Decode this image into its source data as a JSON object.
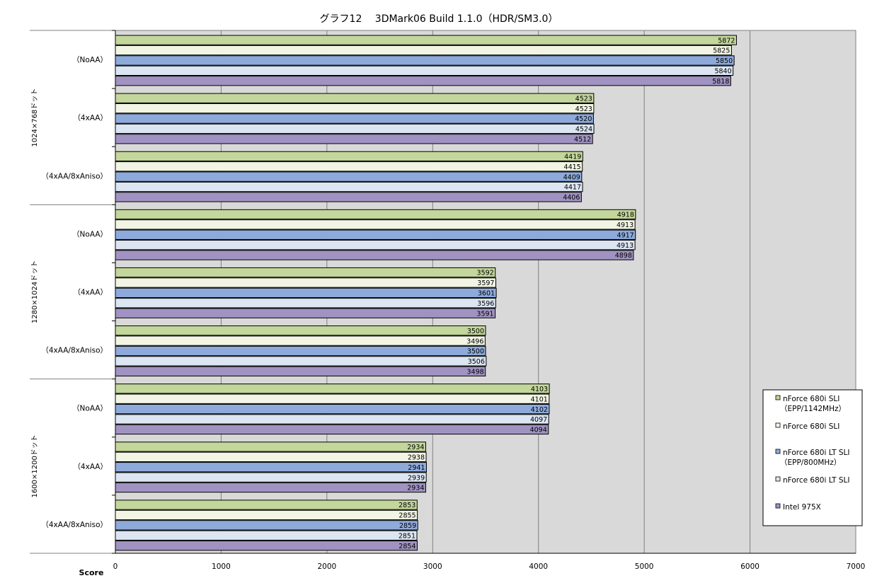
{
  "chart_data": {
    "type": "bar",
    "orientation": "horizontal",
    "title": "グラフ12　 3DMark06 Build 1.1.0（HDR/SM3.0）",
    "xlabel": "Score",
    "xlim": [
      0,
      7000
    ],
    "xticks": [
      0,
      1000,
      2000,
      3000,
      4000,
      5000,
      6000,
      7000
    ],
    "grid": true,
    "legend_position": "right",
    "groups": [
      {
        "label": "1024×768ドット",
        "categories": [
          "（NoAA）",
          "（4xAA）",
          "（4xAA/8xAniso）"
        ]
      },
      {
        "label": "1280×1024ドット",
        "categories": [
          "（NoAA）",
          "（4xAA）",
          "（4xAA/8xAniso）"
        ]
      },
      {
        "label": "1600×1200ドット",
        "categories": [
          "（NoAA）",
          "（4xAA）",
          "（4xAA/8xAniso）"
        ]
      }
    ],
    "series": [
      {
        "name": "nForce 680i SLI\n（EPP/1142MHz）",
        "color": "#c3d69b",
        "values": [
          5872,
          4523,
          4419,
          4918,
          3592,
          3500,
          4103,
          2934,
          2853
        ]
      },
      {
        "name": "nForce 680i SLI",
        "color": "#f2f5e4",
        "values": [
          5825,
          4523,
          4415,
          4913,
          3597,
          3496,
          4101,
          2938,
          2855
        ]
      },
      {
        "name": "nForce 680i LT SLI\n（EPP/800MHz）",
        "color": "#8eaadb",
        "values": [
          5850,
          4520,
          4409,
          4917,
          3601,
          3500,
          4102,
          2941,
          2859
        ]
      },
      {
        "name": "nForce 680i LT SLI",
        "color": "#dce6f2",
        "values": [
          5840,
          4524,
          4417,
          4913,
          3596,
          3506,
          4097,
          2939,
          2851
        ]
      },
      {
        "name": "Intel 975X",
        "color": "#a093c2",
        "values": [
          5818,
          4512,
          4406,
          4898,
          3591,
          3498,
          4094,
          2934,
          2854
        ]
      }
    ]
  }
}
